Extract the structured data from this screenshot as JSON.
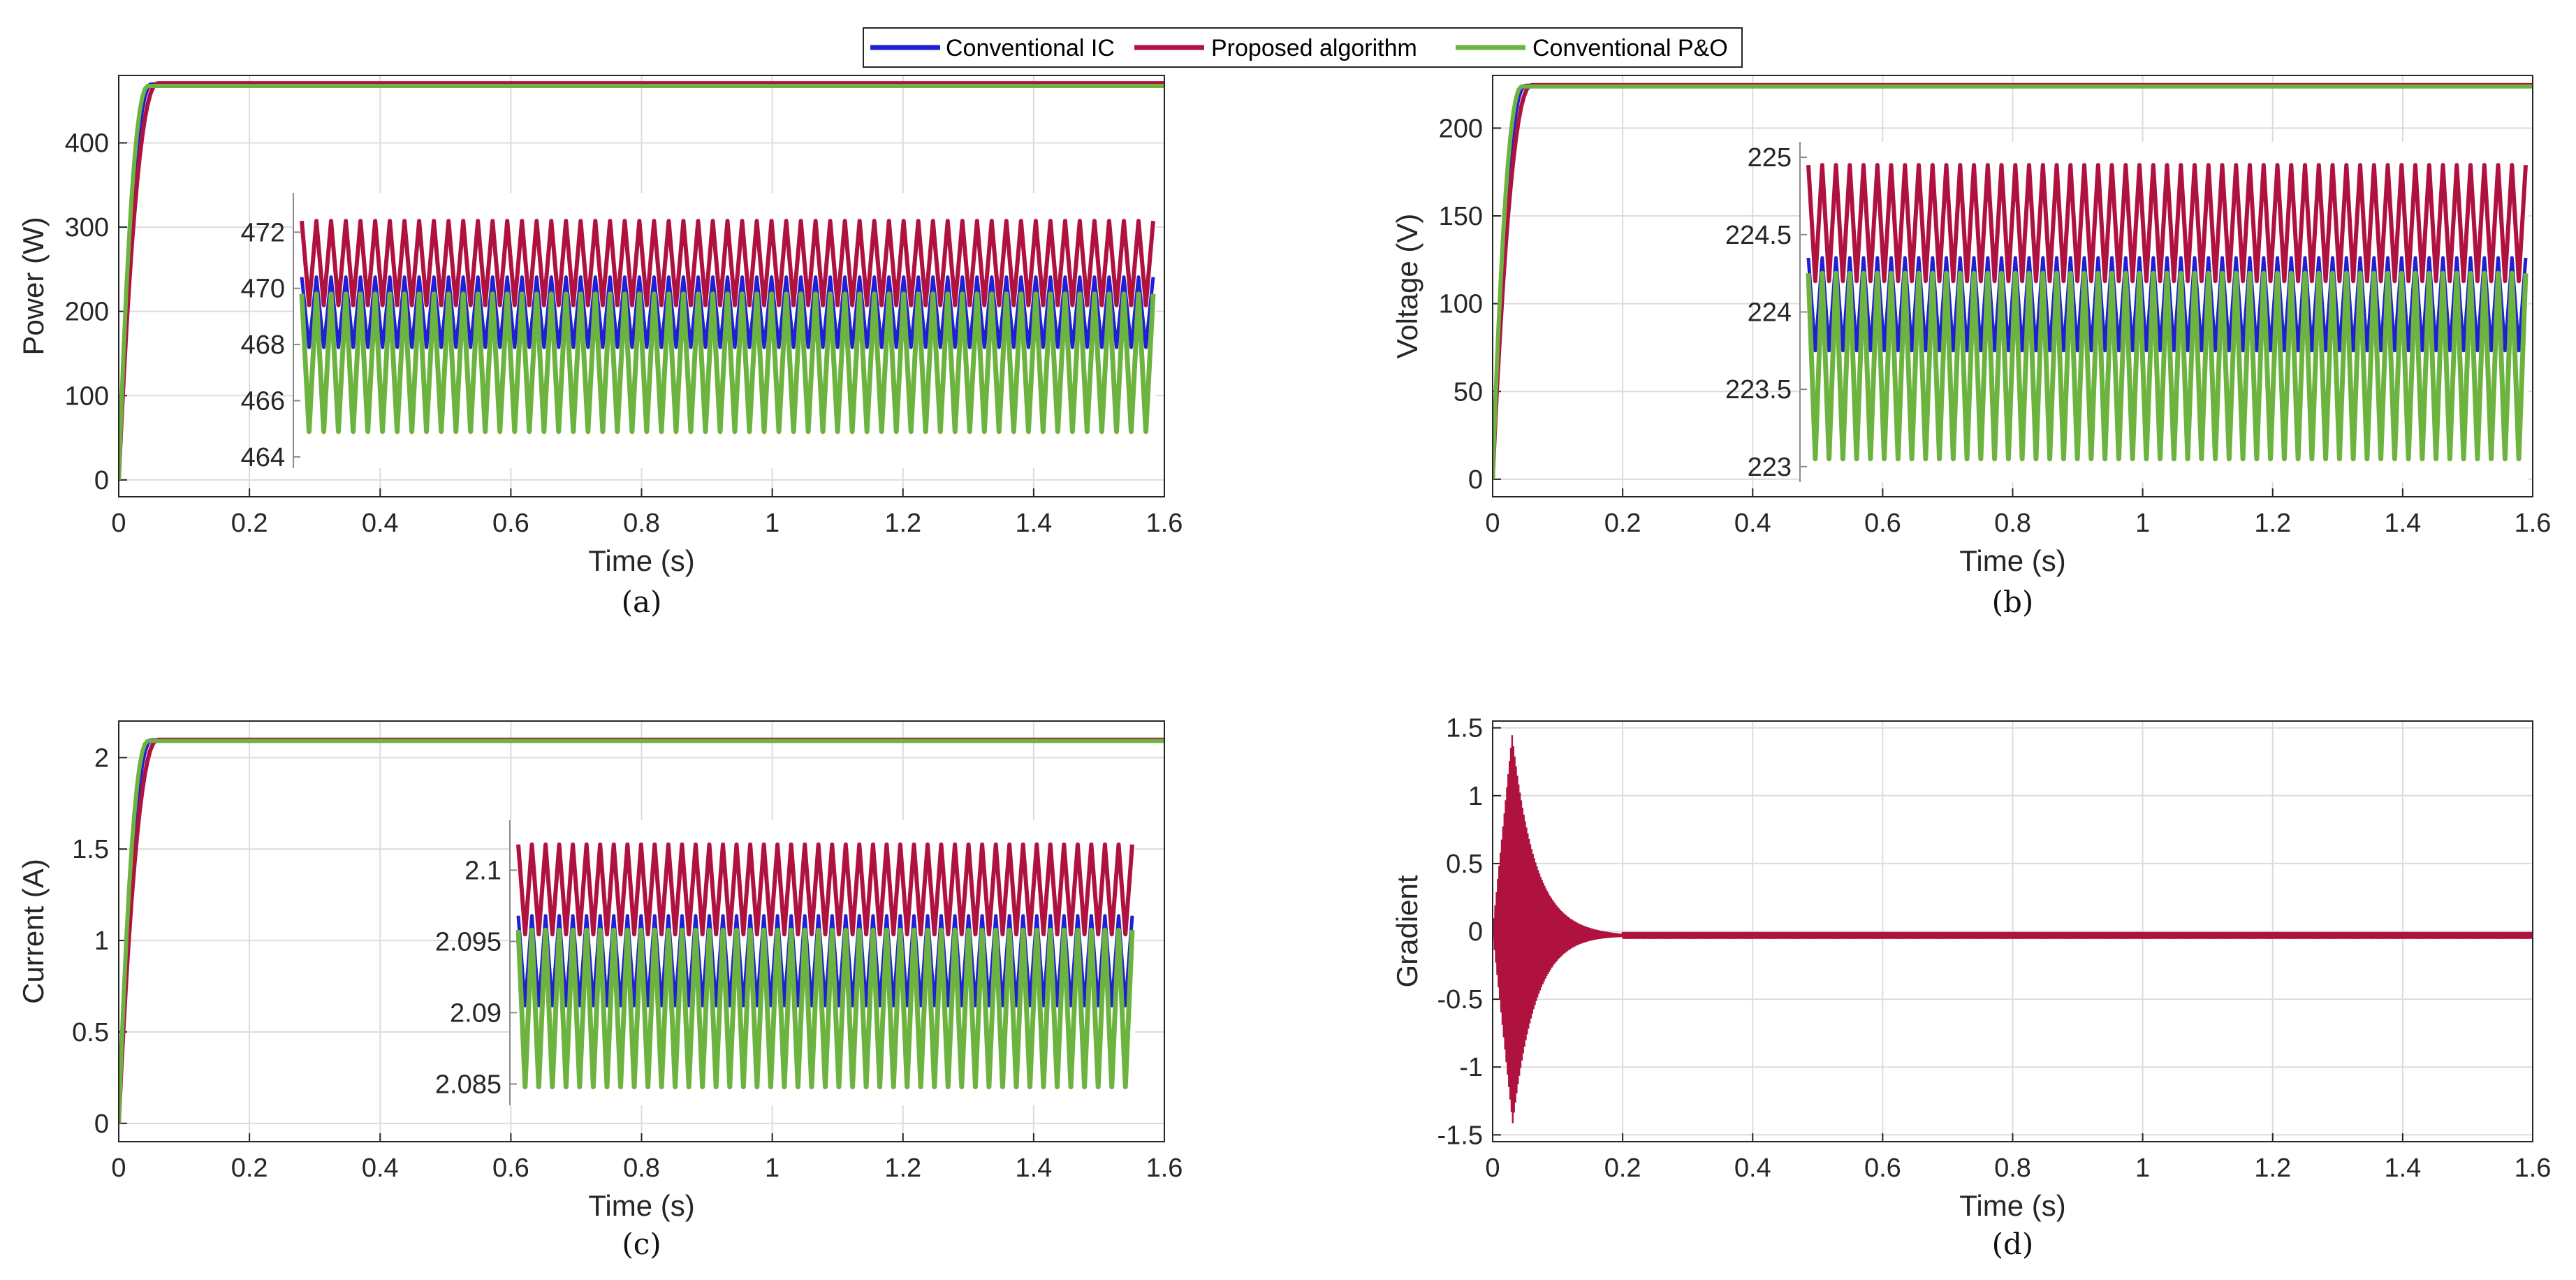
{
  "legend": [
    {
      "name": "Conventional IC",
      "color": "#1f1fd6"
    },
    {
      "name": "Proposed algorithm",
      "color": "#b0123f"
    },
    {
      "name": "Conventional P&O",
      "color": "#6db33f"
    }
  ],
  "chart_data": [
    {
      "id": "a",
      "type": "line",
      "caption": "(a)",
      "xlabel": "Time (s)",
      "ylabel": "Power (W)",
      "xlim": [
        0,
        1.6
      ],
      "ylim": [
        -20,
        480
      ],
      "grid": true,
      "xticks": [
        0,
        0.2,
        0.4,
        0.6,
        0.8,
        1,
        1.2,
        1.4,
        1.6
      ],
      "xtick_labels": [
        "0",
        "0.2",
        "0.4",
        "0.6",
        "0.8",
        "1",
        "1.2",
        "1.4",
        "1.6"
      ],
      "yticks": [
        0,
        100,
        200,
        300,
        400
      ],
      "ytick_labels": [
        "0",
        "100",
        "200",
        "300",
        "400"
      ],
      "series": [
        {
          "name": "Conventional IC",
          "steady_value": 469.4,
          "rise_time_s": 0.05
        },
        {
          "name": "Proposed algorithm",
          "steady_value": 470.8,
          "rise_time_s": 0.06
        },
        {
          "name": "Conventional P&O",
          "steady_value": 467.6,
          "rise_time_s": 0.045
        }
      ],
      "inset": {
        "x_range_s": [
          0.365,
          1.57
        ],
        "ylim": [
          463.6,
          473.4
        ],
        "yticks": [
          464,
          466,
          468,
          470,
          472
        ],
        "ytick_labels": [
          "464",
          "466",
          "468",
          "470",
          "472"
        ],
        "cycles": 58,
        "bands": [
          {
            "name": "Conventional P&O",
            "min": 464.9,
            "max": 469.8
          },
          {
            "name": "Conventional IC",
            "min": 467.9,
            "max": 470.4
          },
          {
            "name": "Proposed algorithm",
            "min": 469.4,
            "max": 472.4
          }
        ]
      }
    },
    {
      "id": "b",
      "type": "line",
      "caption": "(b)",
      "xlabel": "Time (s)",
      "ylabel": "Voltage (V)",
      "xlim": [
        0,
        1.6
      ],
      "ylim": [
        -10,
        230
      ],
      "grid": true,
      "xticks": [
        0,
        0.2,
        0.4,
        0.6,
        0.8,
        1,
        1.2,
        1.4,
        1.6
      ],
      "xtick_labels": [
        "0",
        "0.2",
        "0.4",
        "0.6",
        "0.8",
        "1",
        "1.2",
        "1.4",
        "1.6"
      ],
      "yticks": [
        0,
        50,
        100,
        150,
        200
      ],
      "ytick_labels": [
        "0",
        "50",
        "100",
        "150",
        "200"
      ],
      "series": [
        {
          "name": "Conventional IC",
          "steady_value": 224.1,
          "rise_time_s": 0.05
        },
        {
          "name": "Proposed algorithm",
          "steady_value": 224.5,
          "rise_time_s": 0.06
        },
        {
          "name": "Conventional P&O",
          "steady_value": 223.7,
          "rise_time_s": 0.045
        }
      ],
      "inset": {
        "x_range_s": [
          0.46,
          1.57
        ],
        "ylim": [
          222.9,
          225.1
        ],
        "yticks": [
          223,
          223.5,
          224,
          224.5,
          225
        ],
        "ytick_labels": [
          "223",
          "223.5",
          "224",
          "224.5",
          "225"
        ],
        "cycles": 52,
        "bands": [
          {
            "name": "Conventional P&O",
            "min": 223.05,
            "max": 224.25
          },
          {
            "name": "Conventional IC",
            "min": 223.75,
            "max": 224.35
          },
          {
            "name": "Proposed algorithm",
            "min": 224.2,
            "max": 224.95
          }
        ]
      }
    },
    {
      "id": "c",
      "type": "line",
      "caption": "(c)",
      "xlabel": "Time (s)",
      "ylabel": "Current (A)",
      "xlim": [
        0,
        1.6
      ],
      "ylim": [
        -0.1,
        2.2
      ],
      "grid": true,
      "xticks": [
        0,
        0.2,
        0.4,
        0.6,
        0.8,
        1,
        1.2,
        1.4,
        1.6
      ],
      "xtick_labels": [
        "0",
        "0.2",
        "0.4",
        "0.6",
        "0.8",
        "1",
        "1.2",
        "1.4",
        "1.6"
      ],
      "yticks": [
        0,
        0.5,
        1,
        1.5,
        2
      ],
      "ytick_labels": [
        "0",
        "0.5",
        "1",
        "1.5",
        "2"
      ],
      "series": [
        {
          "name": "Conventional IC",
          "steady_value": 2.095,
          "rise_time_s": 0.05
        },
        {
          "name": "Proposed algorithm",
          "steady_value": 2.098,
          "rise_time_s": 0.06
        },
        {
          "name": "Conventional P&O",
          "steady_value": 2.091,
          "rise_time_s": 0.045
        }
      ],
      "inset": {
        "x_range_s": [
          0.6,
          1.55
        ],
        "ylim": [
          2.0835,
          2.1035
        ],
        "yticks": [
          2.085,
          2.09,
          2.095,
          2.1
        ],
        "ytick_labels": [
          "2.085",
          "2.09",
          "2.095",
          "2.1"
        ],
        "cycles": 45,
        "bands": [
          {
            "name": "Conventional P&O",
            "min": 2.0848,
            "max": 2.0958
          },
          {
            "name": "Conventional IC",
            "min": 2.0905,
            "max": 2.0968
          },
          {
            "name": "Proposed algorithm",
            "min": 2.0955,
            "max": 2.1018
          }
        ]
      }
    },
    {
      "id": "d",
      "type": "line",
      "caption": "(d)",
      "xlabel": "Time (s)",
      "ylabel": "Gradient",
      "xlim": [
        0,
        1.6
      ],
      "ylim": [
        -1.55,
        1.55
      ],
      "grid": true,
      "xticks": [
        0,
        0.2,
        0.4,
        0.6,
        0.8,
        1,
        1.2,
        1.4,
        1.6
      ],
      "xtick_labels": [
        "0",
        "0.2",
        "0.4",
        "0.6",
        "0.8",
        "1",
        "1.2",
        "1.4",
        "1.6"
      ],
      "yticks": [
        -1.5,
        -1,
        -0.5,
        0,
        0.5,
        1,
        1.5
      ],
      "ytick_labels": [
        "-1.5",
        "-1",
        "-0.5",
        "0",
        "0.5",
        "1",
        "1.5"
      ],
      "series": [
        {
          "name": "Proposed algorithm",
          "peak_value": 1.45,
          "trough_value": -1.42,
          "peak_time_s": 0.03,
          "settle_time_s": 0.2,
          "steady_value": -0.03
        }
      ]
    }
  ]
}
